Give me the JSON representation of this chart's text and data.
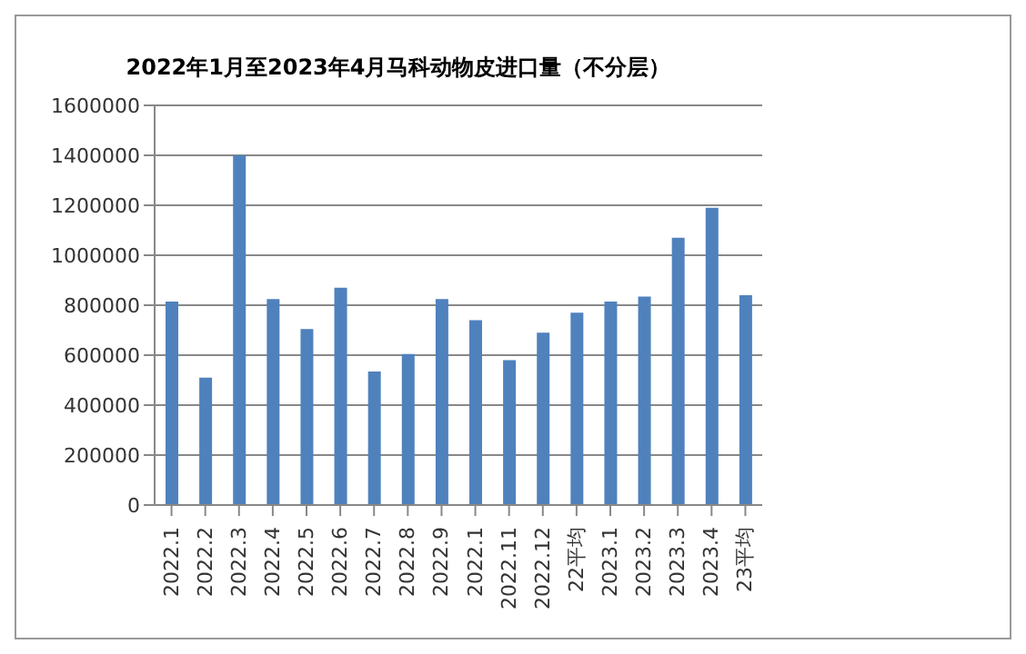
{
  "chart_data": {
    "type": "bar",
    "title": "2022年1月至2023年4月马科动物皮进口量（不分层）",
    "categories": [
      "2022.1",
      "2022.2",
      "2022.3",
      "2022.4",
      "2022.5",
      "2022.6",
      "2022.7",
      "2022.8",
      "2022.9",
      "2022.1",
      "2022.11",
      "2022.12",
      "22平均",
      "2023.1",
      "2023.2",
      "2023.3",
      "2023.4",
      "23平均"
    ],
    "values": [
      815000,
      510000,
      1400000,
      825000,
      705000,
      870000,
      535000,
      605000,
      825000,
      740000,
      580000,
      690000,
      770000,
      815000,
      835000,
      1070000,
      1190000,
      840000
    ],
    "color": "#4f81bd",
    "ylim": [
      0,
      1600000
    ],
    "yticks": [
      0,
      200000,
      400000,
      600000,
      800000,
      1000000,
      1200000,
      1400000,
      1600000
    ],
    "grid": "y"
  }
}
